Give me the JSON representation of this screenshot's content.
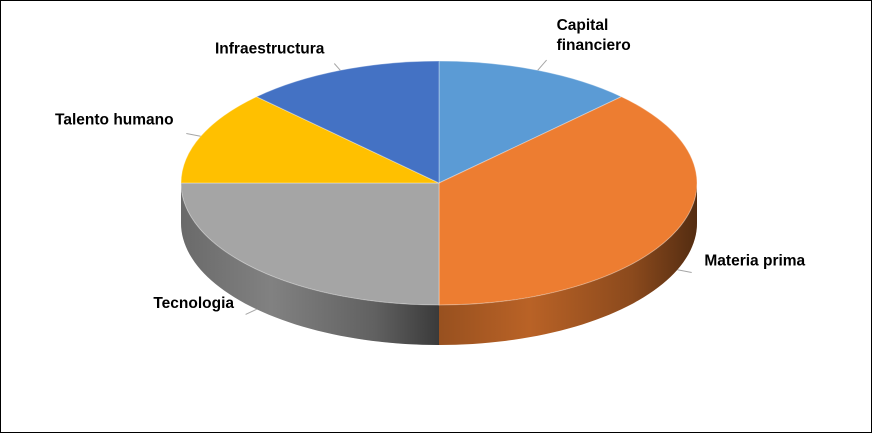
{
  "chart_data": {
    "type": "pie",
    "title": "",
    "style": "3d",
    "categories": [
      "Capital financiero",
      "Materia prima",
      "Tecnologia",
      "Talento humano",
      "Infraestructura"
    ],
    "values": [
      12.5,
      37.5,
      25,
      12.5,
      12.5
    ],
    "colors": [
      "#5B9BD5",
      "#ED7D31",
      "#A5A5A5",
      "#FFC000",
      "#4472C4"
    ],
    "labels": [
      {
        "lines": [
          "Capital",
          "financiero"
        ]
      },
      {
        "lines": [
          "Materia prima"
        ]
      },
      {
        "lines": [
          "Tecnologia"
        ]
      },
      {
        "lines": [
          "Talento humano"
        ]
      },
      {
        "lines": [
          "Infraestructura"
        ]
      }
    ],
    "legend": "none",
    "data_labels": "category names with leader lines"
  }
}
